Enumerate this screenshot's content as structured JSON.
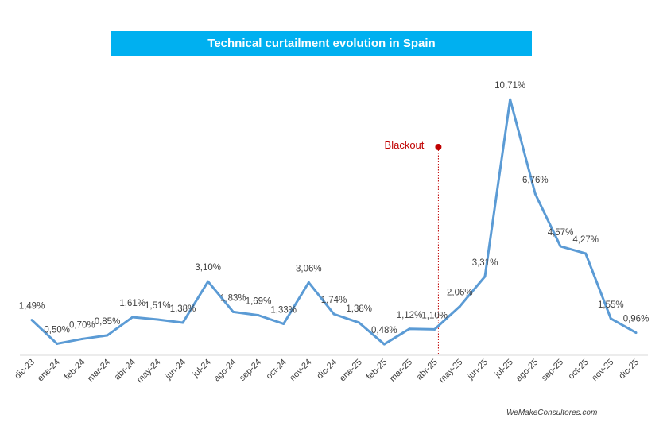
{
  "chart_data": {
    "type": "line",
    "title": "Technical curtailment evolution in Spain",
    "xlabel": "",
    "ylabel": "",
    "categories": [
      "dic-23",
      "ene-24",
      "feb-24",
      "mar-24",
      "abr-24",
      "may-24",
      "jun-24",
      "jul-24",
      "ago-24",
      "sep-24",
      "oct-24",
      "nov-24",
      "dic-24",
      "ene-25",
      "feb-25",
      "mar-25",
      "abr-25",
      "may-25",
      "jun-25",
      "jul-25",
      "ago-25",
      "sep-25",
      "oct-25",
      "nov-25",
      "dic-25"
    ],
    "series": [
      {
        "name": "Technical curtailment (%)",
        "values": [
          1.49,
          0.5,
          0.7,
          0.85,
          1.61,
          1.51,
          1.38,
          3.1,
          1.83,
          1.69,
          1.33,
          3.06,
          1.74,
          1.38,
          0.48,
          1.12,
          1.1,
          2.06,
          3.31,
          10.71,
          6.76,
          4.57,
          4.27,
          1.55,
          0.96
        ],
        "labels": [
          "1,49%",
          "0,50%",
          "0,70%",
          "0,85%",
          "1,61%",
          "1,51%",
          "1,38%",
          "3,10%",
          "1,83%",
          "1,69%",
          "1,33%",
          "3,06%",
          "1,74%",
          "1,38%",
          "0,48%",
          "1,12%",
          "1,10%",
          "2,06%",
          "3,31%",
          "10,71%",
          "6,76%",
          "4,57%",
          "4,27%",
          "1,55%",
          "0,96%"
        ],
        "color": "#5b9bd5"
      }
    ],
    "annotation": {
      "text": "Blackout",
      "between": [
        "abr-25",
        "may-25"
      ],
      "color": "#c00000"
    },
    "ylim": [
      0,
      11
    ],
    "grid": false,
    "legend": "none"
  },
  "title_bg": "#00b0f0",
  "credit": "WeMakeConsultores.com"
}
